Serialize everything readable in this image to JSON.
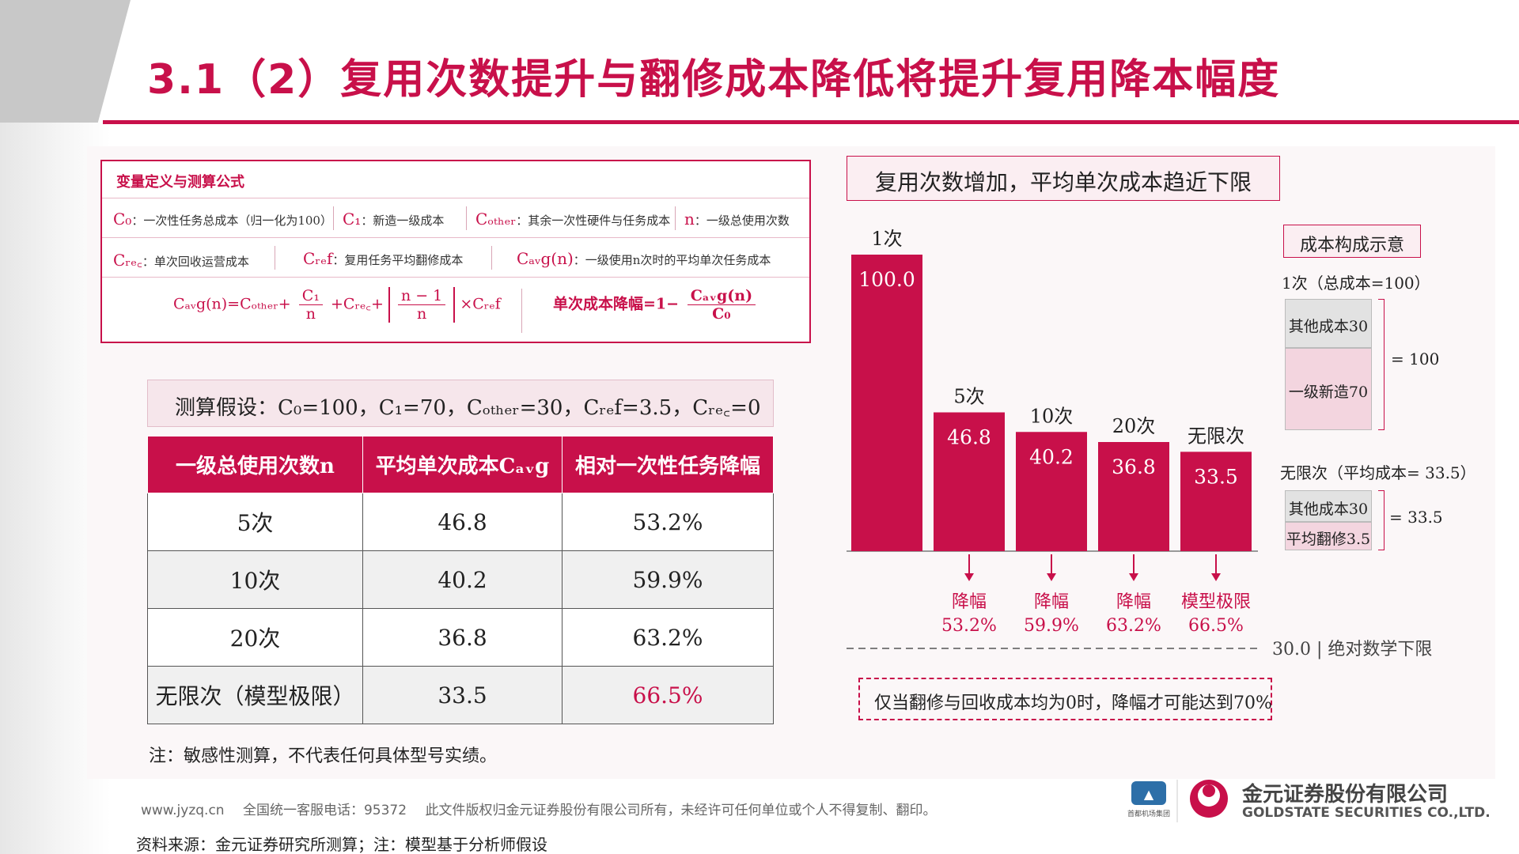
{
  "title": "3.1（2）复用次数提升与翻修成本降低将提升复用降本幅度",
  "definitions": {
    "heading": "变量定义与测算公式",
    "row1": [
      {
        "sym": "C₀",
        "text": "：一次性任务总成本（归一化为100）"
      },
      {
        "sym": "C₁",
        "text": "：新造一级成本"
      },
      {
        "sym": "Cₒₜₕₑᵣ",
        "text": "：其余一次性硬件与任务成本"
      },
      {
        "sym": "n",
        "text": "：一级总使用次数"
      }
    ],
    "row2": [
      {
        "sym": "Cᵣₑ꜀",
        "text": "：单次回收运营成本"
      },
      {
        "sym": "Cᵣₑf",
        "text": "：复用任务平均翻修成本"
      },
      {
        "sym": "Cₐᵥg(n)",
        "text": "：一级使用n次时的平均单次任务成本"
      }
    ],
    "formula_left_prefix": "Cₐᵥg(n)=Cₒₜₕₑᵣ+",
    "formula_frac1_num": "C₁",
    "formula_frac1_den": "n",
    "formula_mid": "+Cᵣₑ꜀+",
    "formula_frac2_num": "n − 1",
    "formula_frac2_den": "n",
    "formula_tail": "×Cᵣₑf",
    "formula_right_prefix": "单次成本降幅=1−",
    "formula_frac3_num": "Cₐᵥg(n)",
    "formula_frac3_den": "C₀"
  },
  "assumptions": "测算假设：C₀=100，C₁=70，Cₒₜₕₑᵣ=30，Cᵣₑf=3.5，Cᵣₑ꜀=0",
  "table": {
    "headers": [
      "一级总使用次数n",
      "平均单次成本Cₐᵥg",
      "相对一次性任务降幅"
    ],
    "rows": [
      [
        "5次",
        "46.8",
        "53.2%"
      ],
      [
        "10次",
        "40.2",
        "59.9%"
      ],
      [
        "20次",
        "36.8",
        "63.2%"
      ],
      [
        "无限次（模型极限）",
        "33.5",
        "66.5%"
      ]
    ]
  },
  "note": "注：敏感性测算，不代表任何具体型号实绩。",
  "chart_title": "复用次数增加，平均单次成本趋近下限",
  "chart_data": {
    "type": "bar",
    "categories": [
      "1次",
      "5次",
      "10次",
      "20次",
      "无限次"
    ],
    "values": [
      100.0,
      46.8,
      40.2,
      36.8,
      33.5
    ],
    "value_labels": [
      "100.0",
      "46.8",
      "40.2",
      "36.8",
      "33.5"
    ],
    "reductions": [
      {
        "label": "降幅",
        "value": "53.2%"
      },
      {
        "label": "降幅",
        "value": "59.9%"
      },
      {
        "label": "降幅",
        "value": "63.2%"
      },
      {
        "label": "模型极限",
        "value": "66.5%"
      }
    ],
    "floor_value": 30.0,
    "floor_label": "30.0 | 绝对数学下限",
    "bar_color": "#c8104a"
  },
  "legend": {
    "title": "成本构成示意",
    "case1_label": "1次（总成本=100）",
    "case1_top": "其他成本30",
    "case1_bottom": "一级新造70",
    "case1_total": "= 100",
    "case2_label": "无限次（平均成本= 33.5）",
    "case2_top": "其他成本30",
    "case2_bottom": "平均翻修3.5",
    "case2_total": "= 33.5"
  },
  "footnote_box": "仅当翻修与回收成本均为0时，降幅才可能达到70%",
  "footer": {
    "website": "www.jyzq.cn",
    "hotline": "全国统一客服电话：95372",
    "copyright": "此文件版权归金元证券股份有限公司所有，未经许可任何单位或个人不得复制、翻印。"
  },
  "logo": {
    "cn": "金元证券股份有限公司",
    "en": "GOLDSTATE SECURITIES CO.,LTD.",
    "partner": "首都机场集团"
  },
  "source": "资料来源：金元证券研究所测算；注：模型基于分析师假设",
  "colors": {
    "accent": "#c8104a",
    "pink_bg": "#f6e6eb",
    "legend_pink": "#f3d5df",
    "legend_gray": "#e2e2e2"
  }
}
